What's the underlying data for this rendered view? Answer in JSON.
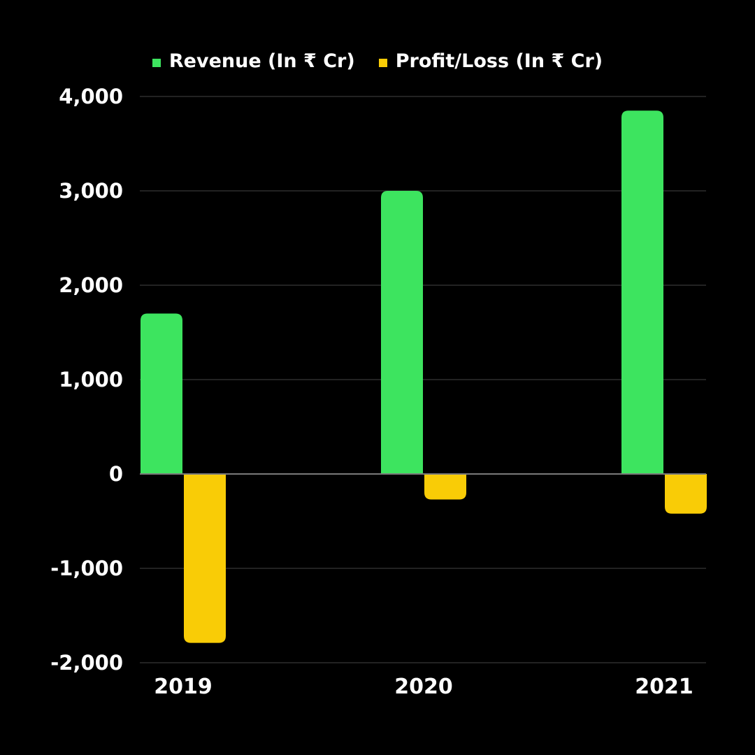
{
  "colors": {
    "background": "#000000",
    "revenue": "#3de45f",
    "profit_loss": "#f9cc06",
    "gridline": "#2e2e2e",
    "zero_line": "#7a7a7a",
    "text": "#ffffff"
  },
  "chart_data": {
    "type": "bar",
    "categories": [
      "2019",
      "2020",
      "2021"
    ],
    "series": [
      {
        "name": "Revenue (In ₹ Cr)",
        "values": [
          1700,
          3000,
          3850
        ]
      },
      {
        "name": "Profit/Loss (In ₹ Cr)",
        "values": [
          -1790,
          -270,
          -420
        ]
      }
    ],
    "ylim": [
      -2000,
      4000
    ],
    "yticks": [
      4000,
      3000,
      2000,
      1000,
      0,
      -1000,
      -2000
    ],
    "ytick_labels": [
      "4,000",
      "3,000",
      "2,000",
      "1,000",
      "0",
      "-1,000",
      "-2,000"
    ],
    "grid": true,
    "legend_position": "top-center",
    "title": "",
    "xlabel": "",
    "ylabel": ""
  }
}
